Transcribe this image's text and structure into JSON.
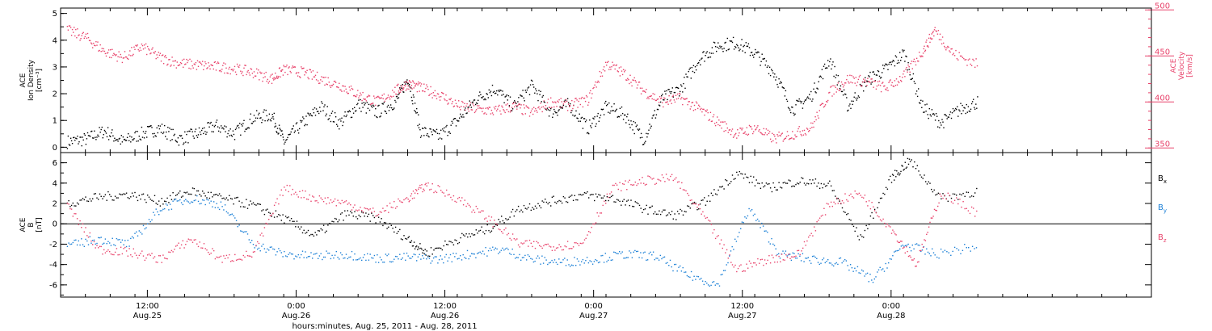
{
  "x_axis": {
    "title": "hours:minutes, Aug. 25, 2011 - Aug. 28, 2011",
    "range": [
      "2011-08-25T05:00",
      "2011-08-28T21:00"
    ],
    "ticks": [
      {
        "t": "2011-08-25T12:00",
        "time": "12:00",
        "date": "Aug.25"
      },
      {
        "t": "2011-08-26T00:00",
        "time": "0:00",
        "date": "Aug.26"
      },
      {
        "t": "2011-08-26T12:00",
        "time": "12:00",
        "date": "Aug.26"
      },
      {
        "t": "2011-08-27T00:00",
        "time": "0:00",
        "date": "Aug.27"
      },
      {
        "t": "2011-08-27T12:00",
        "time": "12:00",
        "date": "Aug.27"
      },
      {
        "t": "2011-08-28T00:00",
        "time": "0:00",
        "date": "Aug.28"
      }
    ]
  },
  "chart_data": [
    {
      "type": "scatter",
      "panel": "top",
      "left_axis": {
        "label_lines": [
          "ACE",
          "Ion Density",
          "[cm⁻³]"
        ],
        "ylim": [
          -0.2,
          5.2
        ],
        "ticks": [
          0,
          1,
          2,
          3,
          4,
          5
        ],
        "color": "#000000"
      },
      "right_axis": {
        "label_lines": [
          "ACE",
          "Velocity",
          "[km/s]"
        ],
        "ylim": [
          345,
          502
        ],
        "ticks": [
          350,
          400,
          450,
          500
        ],
        "color": "#e8436b"
      },
      "series": [
        {
          "axis": "left",
          "color": "#000000",
          "points": [
            [
              "2011-08-25T05:30",
              0.2
            ],
            [
              "2011-08-25T07:00",
              0.3
            ],
            [
              "2011-08-25T08:30",
              0.6
            ],
            [
              "2011-08-25T10:00",
              0.2
            ],
            [
              "2011-08-25T11:30",
              0.5
            ],
            [
              "2011-08-25T13:00",
              0.7
            ],
            [
              "2011-08-25T14:30",
              0.3
            ],
            [
              "2011-08-25T16:00",
              0.5
            ],
            [
              "2011-08-25T17:30",
              0.8
            ],
            [
              "2011-08-25T19:00",
              0.5
            ],
            [
              "2011-08-25T20:30",
              1.1
            ],
            [
              "2011-08-25T22:00",
              1.2
            ],
            [
              "2011-08-25T23:00",
              0.2
            ],
            [
              "2011-08-26T00:30",
              0.9
            ],
            [
              "2011-08-26T02:00",
              1.5
            ],
            [
              "2011-08-26T03:30",
              0.9
            ],
            [
              "2011-08-26T05:00",
              1.6
            ],
            [
              "2011-08-26T06:30",
              1.3
            ],
            [
              "2011-08-26T08:00",
              1.7
            ],
            [
              "2011-08-26T09:00",
              2.6
            ],
            [
              "2011-08-26T10:00",
              0.6
            ],
            [
              "2011-08-26T11:30",
              0.4
            ],
            [
              "2011-08-26T13:00",
              1.0
            ],
            [
              "2011-08-26T14:30",
              1.8
            ],
            [
              "2011-08-26T16:00",
              2.2
            ],
            [
              "2011-08-26T17:30",
              1.5
            ],
            [
              "2011-08-26T19:00",
              2.3
            ],
            [
              "2011-08-26T20:30",
              1.3
            ],
            [
              "2011-08-26T22:00",
              1.6
            ],
            [
              "2011-08-26T23:30",
              0.7
            ],
            [
              "2011-08-27T01:00",
              1.5
            ],
            [
              "2011-08-27T02:30",
              1.2
            ],
            [
              "2011-08-27T04:00",
              0.3
            ],
            [
              "2011-08-27T05:30",
              1.8
            ],
            [
              "2011-08-27T07:00",
              2.2
            ],
            [
              "2011-08-27T08:30",
              3.3
            ],
            [
              "2011-08-27T10:00",
              3.8
            ],
            [
              "2011-08-27T11:30",
              3.9
            ],
            [
              "2011-08-27T13:00",
              3.5
            ],
            [
              "2011-08-27T14:30",
              2.8
            ],
            [
              "2011-08-27T16:00",
              1.4
            ],
            [
              "2011-08-27T17:30",
              1.9
            ],
            [
              "2011-08-27T19:00",
              3.3
            ],
            [
              "2011-08-27T20:30",
              1.5
            ],
            [
              "2011-08-27T22:00",
              2.5
            ],
            [
              "2011-08-27T23:30",
              2.9
            ],
            [
              "2011-08-28T01:00",
              3.5
            ],
            [
              "2011-08-28T02:30",
              1.5
            ],
            [
              "2011-08-28T04:00",
              0.9
            ],
            [
              "2011-08-28T05:30",
              1.4
            ],
            [
              "2011-08-28T07:00",
              1.7
            ]
          ]
        },
        {
          "axis": "right",
          "color": "#e8436b",
          "points": [
            [
              "2011-08-25T05:30",
              478
            ],
            [
              "2011-08-25T07:00",
              470
            ],
            [
              "2011-08-25T08:30",
              455
            ],
            [
              "2011-08-25T10:00",
              448
            ],
            [
              "2011-08-25T11:30",
              460
            ],
            [
              "2011-08-25T13:00",
              448
            ],
            [
              "2011-08-25T14:30",
              442
            ],
            [
              "2011-08-25T16:00",
              440
            ],
            [
              "2011-08-25T17:30",
              438
            ],
            [
              "2011-08-25T19:00",
              436
            ],
            [
              "2011-08-25T20:30",
              432
            ],
            [
              "2011-08-25T22:00",
              425
            ],
            [
              "2011-08-25T23:00",
              435
            ],
            [
              "2011-08-26T00:30",
              432
            ],
            [
              "2011-08-26T02:00",
              425
            ],
            [
              "2011-08-26T03:30",
              418
            ],
            [
              "2011-08-26T05:00",
              408
            ],
            [
              "2011-08-26T06:30",
              400
            ],
            [
              "2011-08-26T08:00",
              412
            ],
            [
              "2011-08-26T09:00",
              420
            ],
            [
              "2011-08-26T10:00",
              415
            ],
            [
              "2011-08-26T11:30",
              408
            ],
            [
              "2011-08-26T13:00",
              396
            ],
            [
              "2011-08-26T14:30",
              392
            ],
            [
              "2011-08-26T16:00",
              390
            ],
            [
              "2011-08-26T17:30",
              395
            ],
            [
              "2011-08-26T19:00",
              388
            ],
            [
              "2011-08-26T20:30",
              400
            ],
            [
              "2011-08-26T22:00",
              396
            ],
            [
              "2011-08-26T23:30",
              402
            ],
            [
              "2011-08-27T01:00",
              442
            ],
            [
              "2011-08-27T02:30",
              430
            ],
            [
              "2011-08-27T04:00",
              412
            ],
            [
              "2011-08-27T05:30",
              400
            ],
            [
              "2011-08-27T07:00",
              404
            ],
            [
              "2011-08-27T08:30",
              392
            ],
            [
              "2011-08-27T10:00",
              378
            ],
            [
              "2011-08-27T11:30",
              365
            ],
            [
              "2011-08-27T13:00",
              372
            ],
            [
              "2011-08-27T14:30",
              360
            ],
            [
              "2011-08-27T16:00",
              365
            ],
            [
              "2011-08-27T17:30",
              372
            ],
            [
              "2011-08-27T19:00",
              410
            ],
            [
              "2011-08-27T20:30",
              425
            ],
            [
              "2011-08-27T22:00",
              422
            ],
            [
              "2011-08-27T23:30",
              415
            ],
            [
              "2011-08-28T01:00",
              428
            ],
            [
              "2011-08-28T02:30",
              455
            ],
            [
              "2011-08-28T03:30",
              478
            ],
            [
              "2011-08-28T05:00",
              452
            ],
            [
              "2011-08-28T07:00",
              440
            ]
          ]
        }
      ]
    },
    {
      "type": "scatter",
      "panel": "bottom",
      "left_axis": {
        "label_lines": [
          "ACE",
          "B",
          "[nT]"
        ],
        "ylim": [
          -7.2,
          7.0
        ],
        "ticks": [
          -6,
          -4,
          -2,
          0,
          2,
          4,
          6
        ],
        "color": "#000000"
      },
      "zero_line": true,
      "series": [
        {
          "name": "B",
          "sub": "x",
          "color": "#000000",
          "points": [
            [
              "2011-08-25T05:30",
              2.0
            ],
            [
              "2011-08-25T08:00",
              2.6
            ],
            [
              "2011-08-25T10:30",
              2.9
            ],
            [
              "2011-08-25T13:00",
              2.2
            ],
            [
              "2011-08-25T15:30",
              3.2
            ],
            [
              "2011-08-25T18:00",
              2.5
            ],
            [
              "2011-08-25T20:30",
              1.8
            ],
            [
              "2011-08-25T23:00",
              0.5
            ],
            [
              "2011-08-26T01:30",
              -1.2
            ],
            [
              "2011-08-26T04:00",
              1.0
            ],
            [
              "2011-08-26T06:30",
              0.5
            ],
            [
              "2011-08-26T09:00",
              -1.5
            ],
            [
              "2011-08-26T10:30",
              -2.9
            ],
            [
              "2011-08-26T13:00",
              -1.5
            ],
            [
              "2011-08-26T15:30",
              -0.5
            ],
            [
              "2011-08-26T18:00",
              1.5
            ],
            [
              "2011-08-26T20:30",
              2.2
            ],
            [
              "2011-08-26T23:00",
              2.8
            ],
            [
              "2011-08-27T01:30",
              2.5
            ],
            [
              "2011-08-27T04:00",
              1.5
            ],
            [
              "2011-08-27T06:30",
              0.8
            ],
            [
              "2011-08-27T09:00",
              2.2
            ],
            [
              "2011-08-27T11:30",
              5.0
            ],
            [
              "2011-08-27T14:00",
              3.5
            ],
            [
              "2011-08-27T16:30",
              4.2
            ],
            [
              "2011-08-27T19:00",
              3.8
            ],
            [
              "2011-08-27T21:30",
              -1.5
            ],
            [
              "2011-08-28T00:00",
              4.5
            ],
            [
              "2011-08-28T01:30",
              6.2
            ],
            [
              "2011-08-28T04:00",
              2.5
            ],
            [
              "2011-08-28T07:00",
              3.2
            ]
          ]
        },
        {
          "name": "B",
          "sub": "y",
          "color": "#1a7fd6",
          "points": [
            [
              "2011-08-25T05:30",
              -2.2
            ],
            [
              "2011-08-25T08:00",
              -1.5
            ],
            [
              "2011-08-25T10:30",
              -2.0
            ],
            [
              "2011-08-25T13:00",
              1.5
            ],
            [
              "2011-08-25T15:30",
              2.5
            ],
            [
              "2011-08-25T18:00",
              1.8
            ],
            [
              "2011-08-25T20:30",
              -2.0
            ],
            [
              "2011-08-25T23:00",
              -3.0
            ],
            [
              "2011-08-26T01:30",
              -3.2
            ],
            [
              "2011-08-26T04:00",
              -3.0
            ],
            [
              "2011-08-26T06:30",
              -3.4
            ],
            [
              "2011-08-26T09:00",
              -3.3
            ],
            [
              "2011-08-26T11:30",
              -3.5
            ],
            [
              "2011-08-26T14:00",
              -3.0
            ],
            [
              "2011-08-26T16:30",
              -2.5
            ],
            [
              "2011-08-26T19:00",
              -3.5
            ],
            [
              "2011-08-26T21:30",
              -3.8
            ],
            [
              "2011-08-27T00:00",
              -3.5
            ],
            [
              "2011-08-27T02:30",
              -3.0
            ],
            [
              "2011-08-27T05:00",
              -3.2
            ],
            [
              "2011-08-27T07:30",
              -5.0
            ],
            [
              "2011-08-27T10:00",
              -6.0
            ],
            [
              "2011-08-27T12:30",
              1.5
            ],
            [
              "2011-08-27T15:00",
              -3.0
            ],
            [
              "2011-08-27T17:30",
              -3.5
            ],
            [
              "2011-08-27T20:00",
              -3.8
            ],
            [
              "2011-08-27T22:30",
              -5.5
            ],
            [
              "2011-08-28T01:00",
              -2.0
            ],
            [
              "2011-08-28T03:30",
              -3.0
            ],
            [
              "2011-08-28T07:00",
              -2.2
            ]
          ]
        },
        {
          "name": "B",
          "sub": "z",
          "color": "#e8436b",
          "points": [
            [
              "2011-08-25T05:30",
              1.8
            ],
            [
              "2011-08-25T08:00",
              -2.5
            ],
            [
              "2011-08-25T10:30",
              -2.8
            ],
            [
              "2011-08-25T13:00",
              -3.5
            ],
            [
              "2011-08-25T15:30",
              -1.5
            ],
            [
              "2011-08-25T18:00",
              -3.5
            ],
            [
              "2011-08-25T20:30",
              -3.0
            ],
            [
              "2011-08-25T23:00",
              3.5
            ],
            [
              "2011-08-26T01:30",
              2.5
            ],
            [
              "2011-08-26T04:00",
              2.0
            ],
            [
              "2011-08-26T06:30",
              1.0
            ],
            [
              "2011-08-26T09:00",
              2.5
            ],
            [
              "2011-08-26T10:30",
              3.8
            ],
            [
              "2011-08-26T13:00",
              2.5
            ],
            [
              "2011-08-26T15:30",
              0.5
            ],
            [
              "2011-08-26T18:00",
              -2.0
            ],
            [
              "2011-08-26T20:30",
              -2.2
            ],
            [
              "2011-08-26T23:00",
              -2.0
            ],
            [
              "2011-08-27T01:30",
              3.5
            ],
            [
              "2011-08-27T04:00",
              4.2
            ],
            [
              "2011-08-27T06:30",
              4.5
            ],
            [
              "2011-08-27T09:00",
              0.5
            ],
            [
              "2011-08-27T11:30",
              -4.5
            ],
            [
              "2011-08-27T14:00",
              -3.5
            ],
            [
              "2011-08-27T16:30",
              -3.0
            ],
            [
              "2011-08-27T19:00",
              2.0
            ],
            [
              "2011-08-27T21:30",
              3.0
            ],
            [
              "2011-08-28T00:00",
              -0.5
            ],
            [
              "2011-08-28T02:00",
              -4.0
            ],
            [
              "2011-08-28T04:00",
              3.0
            ],
            [
              "2011-08-28T07:00",
              1.0
            ]
          ]
        }
      ]
    }
  ]
}
